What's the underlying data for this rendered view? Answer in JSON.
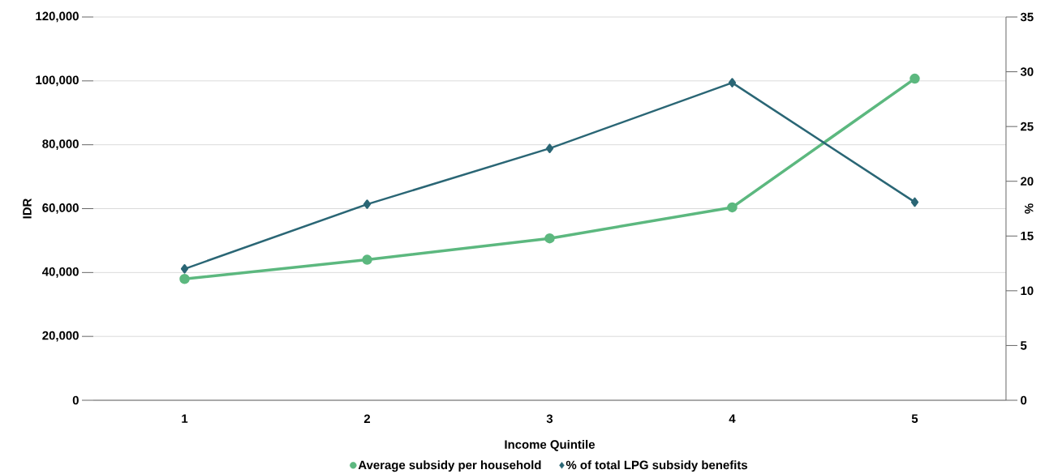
{
  "chart_data": {
    "type": "line",
    "xlabel": "Income Quintile",
    "ylabel": "IDR",
    "y2label": "%",
    "categories": [
      "1",
      "2",
      "3",
      "4",
      "5"
    ],
    "series": [
      {
        "name": "Average subsidy per household",
        "color": "#5cb87f",
        "marker": "circle",
        "values": [
          38000,
          44000,
          50700,
          60400,
          100700
        ]
      },
      {
        "name": "% of total LPG subsidy benefits",
        "color": "#2a6675",
        "marker": "diamond",
        "axis": "y2",
        "values": [
          12.0,
          17.9,
          23.0,
          29.0,
          18.1
        ]
      }
    ],
    "ylim": [
      0,
      120000
    ],
    "yticks": [
      {
        "value": 0,
        "label": "0"
      },
      {
        "value": 20000,
        "label": "20,000"
      },
      {
        "value": 40000,
        "label": "40,000"
      },
      {
        "value": 60000,
        "label": "60,000"
      },
      {
        "value": 80000,
        "label": "80,000"
      },
      {
        "value": 100000,
        "label": "100,000"
      },
      {
        "value": 120000,
        "label": "120,000"
      }
    ],
    "y2lim": [
      0,
      35
    ],
    "y2ticks": [
      0,
      5,
      10,
      15,
      20,
      25,
      30,
      35
    ],
    "grid": "y",
    "legend": "bottom"
  }
}
